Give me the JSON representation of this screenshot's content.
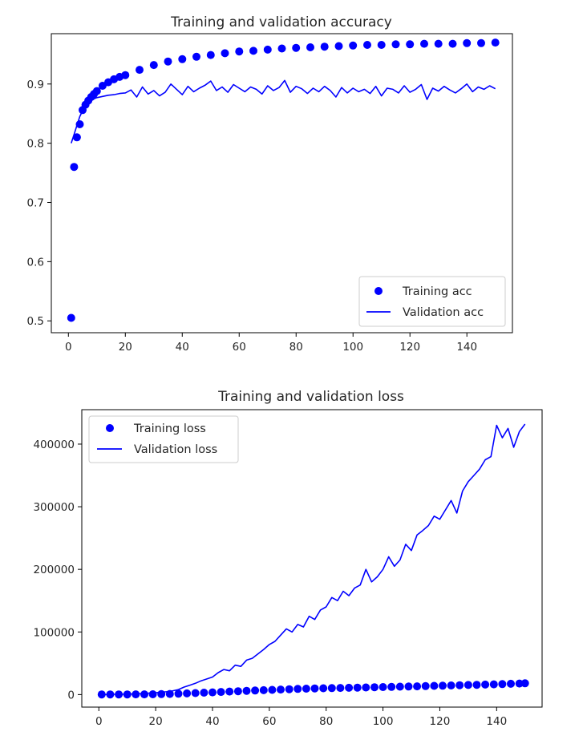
{
  "chart_data": [
    {
      "type": "line",
      "title": "Training and validation accuracy",
      "xlabel": "",
      "ylabel": "",
      "xlim": [
        -6,
        156
      ],
      "ylim": [
        0.48,
        0.985
      ],
      "xticks": [
        0,
        20,
        40,
        60,
        80,
        100,
        120,
        140
      ],
      "yticks": [
        0.5,
        0.6,
        0.7,
        0.8,
        0.9
      ],
      "ytick_labels": [
        "0.5",
        "0.6",
        "0.7",
        "0.8",
        "0.9"
      ],
      "grid": false,
      "legend_position": "lower-right",
      "series": [
        {
          "name": "Training acc",
          "style": "dots",
          "color": "#0000ff",
          "x": [
            1,
            2,
            3,
            4,
            5,
            6,
            7,
            8,
            9,
            10,
            12,
            14,
            16,
            18,
            20,
            25,
            30,
            35,
            40,
            45,
            50,
            55,
            60,
            65,
            70,
            75,
            80,
            85,
            90,
            95,
            100,
            105,
            110,
            115,
            120,
            125,
            130,
            135,
            140,
            145,
            150
          ],
          "y": [
            0.505,
            0.76,
            0.81,
            0.832,
            0.856,
            0.865,
            0.872,
            0.878,
            0.883,
            0.888,
            0.897,
            0.903,
            0.908,
            0.912,
            0.915,
            0.924,
            0.932,
            0.938,
            0.942,
            0.946,
            0.949,
            0.952,
            0.955,
            0.956,
            0.958,
            0.96,
            0.961,
            0.962,
            0.963,
            0.964,
            0.965,
            0.966,
            0.966,
            0.967,
            0.967,
            0.968,
            0.968,
            0.968,
            0.969,
            0.969,
            0.97
          ]
        },
        {
          "name": "Validation acc",
          "style": "line",
          "color": "#0000ff",
          "x": [
            1,
            2,
            3,
            4,
            5,
            6,
            7,
            8,
            9,
            10,
            12,
            14,
            16,
            18,
            20,
            22,
            24,
            26,
            28,
            30,
            32,
            34,
            36,
            38,
            40,
            42,
            44,
            46,
            48,
            50,
            52,
            54,
            56,
            58,
            60,
            62,
            64,
            66,
            68,
            70,
            72,
            74,
            76,
            78,
            80,
            82,
            84,
            86,
            88,
            90,
            92,
            94,
            96,
            98,
            100,
            102,
            104,
            106,
            108,
            110,
            112,
            114,
            116,
            118,
            120,
            122,
            124,
            126,
            128,
            130,
            132,
            134,
            136,
            138,
            140,
            142,
            144,
            146,
            148,
            150
          ],
          "y": [
            0.8,
            0.815,
            0.83,
            0.845,
            0.855,
            0.862,
            0.868,
            0.872,
            0.875,
            0.877,
            0.879,
            0.881,
            0.882,
            0.884,
            0.885,
            0.89,
            0.878,
            0.895,
            0.883,
            0.889,
            0.88,
            0.886,
            0.9,
            0.891,
            0.882,
            0.896,
            0.887,
            0.893,
            0.898,
            0.905,
            0.889,
            0.895,
            0.886,
            0.899,
            0.893,
            0.887,
            0.895,
            0.891,
            0.883,
            0.897,
            0.889,
            0.894,
            0.906,
            0.886,
            0.896,
            0.892,
            0.884,
            0.893,
            0.887,
            0.896,
            0.889,
            0.878,
            0.894,
            0.885,
            0.893,
            0.887,
            0.891,
            0.884,
            0.896,
            0.88,
            0.893,
            0.891,
            0.885,
            0.897,
            0.886,
            0.891,
            0.899,
            0.874,
            0.893,
            0.888,
            0.896,
            0.89,
            0.885,
            0.892,
            0.9,
            0.887,
            0.895,
            0.891,
            0.897,
            0.892
          ]
        }
      ]
    },
    {
      "type": "line",
      "title": "Training and validation loss",
      "xlabel": "",
      "ylabel": "",
      "xlim": [
        -6,
        156
      ],
      "ylim": [
        -20000,
        455000
      ],
      "xticks": [
        0,
        20,
        40,
        60,
        80,
        100,
        120,
        140
      ],
      "yticks": [
        0,
        100000,
        200000,
        300000,
        400000
      ],
      "ytick_labels": [
        "0",
        "100000",
        "200000",
        "300000",
        "400000"
      ],
      "grid": false,
      "legend_position": "upper-left",
      "series": [
        {
          "name": "Training loss",
          "style": "dots",
          "color": "#0000ff",
          "x": [
            1,
            4,
            7,
            10,
            13,
            16,
            19,
            22,
            25,
            28,
            31,
            34,
            37,
            40,
            43,
            46,
            49,
            52,
            55,
            58,
            61,
            64,
            67,
            70,
            73,
            76,
            79,
            82,
            85,
            88,
            91,
            94,
            97,
            100,
            103,
            106,
            109,
            112,
            115,
            118,
            121,
            124,
            127,
            130,
            133,
            136,
            139,
            142,
            145,
            148,
            150
          ],
          "y": [
            200,
            220,
            240,
            270,
            300,
            380,
            500,
            700,
            1000,
            1400,
            1900,
            2400,
            3000,
            3600,
            4200,
            4800,
            5400,
            6000,
            6500,
            7000,
            7500,
            8000,
            8500,
            9000,
            9400,
            9800,
            10100,
            10400,
            10600,
            10900,
            11100,
            11400,
            11700,
            12000,
            12300,
            12600,
            12900,
            13200,
            13500,
            13900,
            14200,
            14600,
            14900,
            15300,
            15600,
            16000,
            16400,
            16800,
            17200,
            17600,
            18000
          ]
        },
        {
          "name": "Validation loss",
          "style": "line",
          "color": "#0000ff",
          "x": [
            1,
            5,
            10,
            15,
            20,
            25,
            28,
            30,
            32,
            34,
            36,
            38,
            40,
            42,
            44,
            46,
            48,
            50,
            52,
            54,
            56,
            58,
            60,
            62,
            64,
            66,
            68,
            70,
            72,
            74,
            76,
            78,
            80,
            82,
            84,
            86,
            88,
            90,
            92,
            94,
            96,
            98,
            100,
            102,
            104,
            106,
            108,
            110,
            112,
            114,
            116,
            118,
            120,
            122,
            124,
            126,
            128,
            130,
            132,
            134,
            136,
            138,
            140,
            142,
            144,
            146,
            148,
            150
          ],
          "y": [
            0,
            500,
            800,
            1500,
            3000,
            5000,
            8000,
            12000,
            15000,
            18000,
            22000,
            25000,
            28000,
            35000,
            40000,
            38000,
            47000,
            45000,
            55000,
            58000,
            65000,
            72000,
            80000,
            85000,
            95000,
            105000,
            100000,
            112000,
            108000,
            125000,
            120000,
            135000,
            140000,
            155000,
            150000,
            165000,
            158000,
            170000,
            175000,
            200000,
            180000,
            188000,
            200000,
            220000,
            205000,
            215000,
            240000,
            230000,
            255000,
            262000,
            270000,
            285000,
            280000,
            295000,
            310000,
            290000,
            325000,
            340000,
            350000,
            360000,
            375000,
            380000,
            430000,
            410000,
            425000,
            395000,
            420000,
            432000
          ]
        }
      ]
    }
  ]
}
